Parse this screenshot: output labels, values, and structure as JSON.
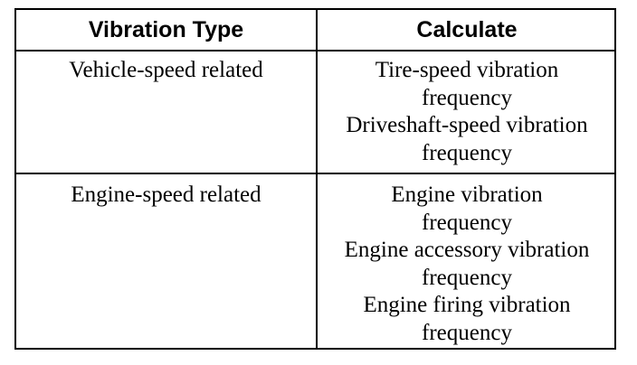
{
  "table": {
    "headers": [
      "Vibration Type",
      "Calculate"
    ],
    "rows": [
      {
        "type": "Vehicle-speed related",
        "calculate_lines": [
          "Tire-speed vibration",
          "frequency",
          "Driveshaft-speed vibration",
          "frequency"
        ]
      },
      {
        "type": "Engine-speed related",
        "calculate_lines": [
          "Engine vibration",
          "frequency",
          "Engine accessory vibration",
          "frequency",
          "Engine firing vibration",
          "frequency"
        ]
      }
    ]
  }
}
